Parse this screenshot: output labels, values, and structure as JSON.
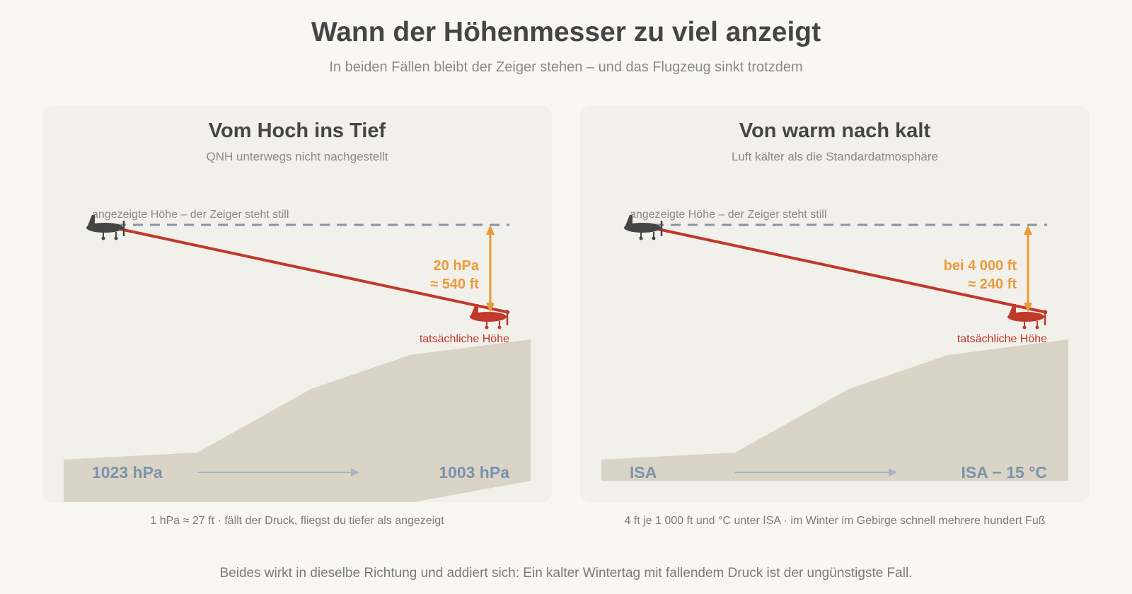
{
  "title": "Wann der Höhenmesser zu viel anzeigt",
  "subtitle": "In beiden Fällen bleibt der Zeiger stehen – und das Flugzeug sinkt trotzdem",
  "panels": [
    {
      "title": "Vom Hoch ins Tief",
      "subtitle": "QNH unterwegs nicht nachgestellt",
      "indicated_label": "angezeigte Höhe – der Zeiger steht still",
      "actual_label": "tatsächliche Höhe",
      "diff_line1": "20 hPa",
      "diff_line2": "≈ 540 ft",
      "start_value": "1023 hPa",
      "end_value": "1003 hPa",
      "caption": "1 hPa ≈ 27 ft · fällt der Druck, fliegst du tiefer als angezeigt"
    },
    {
      "title": "Von warm nach kalt",
      "subtitle": "Luft kälter als die Standardatmosphäre",
      "indicated_label": "angezeigte Höhe – der Zeiger steht still",
      "actual_label": "tatsächliche Höhe",
      "diff_line1": "bei 4 000 ft",
      "diff_line2": "≈ 240 ft",
      "start_value": "ISA",
      "end_value": "ISA − 15 °C",
      "caption": "4 ft je 1 000 ft und °C unter ISA · im Winter im Gebirge schnell mehrere hundert Fuß"
    }
  ],
  "footer": "Beides wirkt in dieselbe Richtung und addiert sich: Ein kalter Wintertag mit fallendem Druck ist der ungünstigste Fall.",
  "colors": {
    "indicated": "#8894a6",
    "actual": "#c0392b",
    "difference": "#ea9a3a",
    "terrain": "#d9d4c6",
    "value": "#7a93ad",
    "plane_start": "#454545"
  }
}
